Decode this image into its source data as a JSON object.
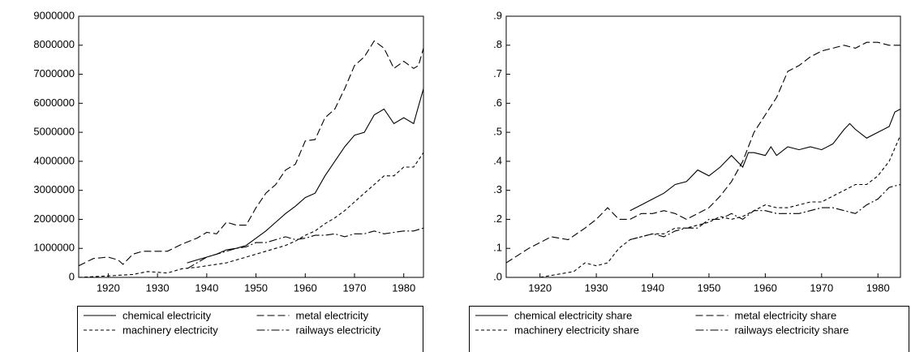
{
  "chart_data": [
    {
      "type": "line",
      "xlim": [
        1914,
        1984
      ],
      "xticks": [
        1920,
        1930,
        1940,
        1950,
        1960,
        1970,
        1980
      ],
      "ylim": [
        0,
        9000000
      ],
      "yticks": [
        0,
        1000000,
        2000000,
        3000000,
        4000000,
        5000000,
        6000000,
        7000000,
        8000000,
        9000000
      ],
      "grid": false,
      "series": [
        {
          "name": "chemical electricity",
          "color": "#000000",
          "dash": "none",
          "x": [
            1936,
            1938,
            1940,
            1942,
            1944,
            1946,
            1948,
            1950,
            1952,
            1954,
            1956,
            1958,
            1960,
            1962,
            1964,
            1966,
            1968,
            1970,
            1972,
            1974,
            1976,
            1978,
            1980,
            1982,
            1983,
            1984
          ],
          "values": [
            500000,
            600000,
            700000,
            800000,
            950000,
            1000000,
            1100000,
            1350000,
            1600000,
            1900000,
            2200000,
            2450000,
            2750000,
            2900000,
            3500000,
            4000000,
            4500000,
            4900000,
            5000000,
            5600000,
            5800000,
            5300000,
            5500000,
            5300000,
            5900000,
            6500000
          ]
        },
        {
          "name": "metal electricity",
          "color": "#000000",
          "dash": "9,4",
          "x": [
            1914,
            1917,
            1920,
            1922,
            1923,
            1925,
            1927,
            1930,
            1932,
            1935,
            1938,
            1940,
            1942,
            1944,
            1946,
            1948,
            1950,
            1952,
            1954,
            1956,
            1958,
            1960,
            1962,
            1964,
            1966,
            1968,
            1970,
            1972,
            1974,
            1976,
            1978,
            1980,
            1982,
            1983,
            1984
          ],
          "values": [
            400000,
            650000,
            700000,
            600000,
            450000,
            800000,
            900000,
            900000,
            900000,
            1150000,
            1350000,
            1550000,
            1500000,
            1900000,
            1800000,
            1800000,
            2400000,
            2900000,
            3200000,
            3700000,
            3900000,
            4700000,
            4750000,
            5500000,
            5800000,
            6500000,
            7300000,
            7600000,
            8150000,
            7900000,
            7200000,
            7450000,
            7200000,
            7300000,
            7900000
          ]
        },
        {
          "name": "machinery electricity",
          "color": "#000000",
          "dash": "4,3",
          "x": [
            1914,
            1920,
            1925,
            1928,
            1932,
            1935,
            1938,
            1940,
            1942,
            1944,
            1946,
            1948,
            1950,
            1952,
            1954,
            1956,
            1958,
            1960,
            1962,
            1964,
            1966,
            1968,
            1970,
            1972,
            1974,
            1976,
            1978,
            1980,
            1982,
            1984
          ],
          "values": [
            0,
            50000,
            100000,
            200000,
            150000,
            300000,
            350000,
            400000,
            450000,
            500000,
            600000,
            700000,
            800000,
            900000,
            1000000,
            1100000,
            1250000,
            1450000,
            1600000,
            1850000,
            2050000,
            2300000,
            2600000,
            2900000,
            3200000,
            3500000,
            3500000,
            3800000,
            3800000,
            4300000
          ]
        },
        {
          "name": "railways electricity",
          "color": "#000000",
          "dash": "10,3,2,3",
          "x": [
            1936,
            1938,
            1940,
            1942,
            1944,
            1946,
            1948,
            1950,
            1952,
            1954,
            1956,
            1958,
            1960,
            1962,
            1964,
            1966,
            1968,
            1970,
            1972,
            1974,
            1976,
            1978,
            1980,
            1982,
            1984
          ],
          "values": [
            300000,
            500000,
            700000,
            800000,
            900000,
            1000000,
            1050000,
            1200000,
            1200000,
            1300000,
            1400000,
            1300000,
            1350000,
            1450000,
            1450000,
            1500000,
            1400000,
            1500000,
            1500000,
            1600000,
            1500000,
            1550000,
            1600000,
            1600000,
            1700000
          ]
        }
      ]
    },
    {
      "type": "line",
      "xlim": [
        1914,
        1984
      ],
      "xticks": [
        1920,
        1930,
        1940,
        1950,
        1960,
        1970,
        1980
      ],
      "ylim": [
        0,
        0.9
      ],
      "yticks": [
        {
          "value": 0,
          "label": ".0"
        },
        {
          "value": 0.1,
          "label": ".1"
        },
        {
          "value": 0.2,
          "label": ".2"
        },
        {
          "value": 0.3,
          "label": ".3"
        },
        {
          "value": 0.4,
          "label": ".4"
        },
        {
          "value": 0.5,
          "label": ".5"
        },
        {
          "value": 0.6,
          "label": ".6"
        },
        {
          "value": 0.7,
          "label": ".7"
        },
        {
          "value": 0.8,
          "label": ".8"
        },
        {
          "value": 0.9,
          "label": ".9"
        }
      ],
      "grid": false,
      "series": [
        {
          "name": "chemical electricity share",
          "color": "#000000",
          "dash": "none",
          "x": [
            1936,
            1938,
            1940,
            1942,
            1944,
            1946,
            1948,
            1950,
            1952,
            1954,
            1956,
            1957,
            1958,
            1960,
            1961,
            1962,
            1964,
            1966,
            1968,
            1970,
            1972,
            1974,
            1975,
            1976,
            1978,
            1980,
            1982,
            1983,
            1984
          ],
          "values": [
            0.23,
            0.25,
            0.27,
            0.29,
            0.32,
            0.33,
            0.37,
            0.35,
            0.38,
            0.42,
            0.38,
            0.43,
            0.43,
            0.42,
            0.45,
            0.42,
            0.45,
            0.44,
            0.45,
            0.44,
            0.46,
            0.51,
            0.53,
            0.51,
            0.48,
            0.5,
            0.52,
            0.57,
            0.58
          ]
        },
        {
          "name": "metal electricity share",
          "color": "#000000",
          "dash": "9,4",
          "x": [
            1914,
            1918,
            1920,
            1922,
            1925,
            1928,
            1930,
            1932,
            1934,
            1936,
            1938,
            1940,
            1942,
            1944,
            1946,
            1948,
            1950,
            1952,
            1954,
            1956,
            1958,
            1960,
            1962,
            1964,
            1966,
            1968,
            1970,
            1972,
            1974,
            1976,
            1978,
            1980,
            1982,
            1984
          ],
          "values": [
            0.05,
            0.1,
            0.12,
            0.14,
            0.13,
            0.17,
            0.2,
            0.24,
            0.2,
            0.2,
            0.22,
            0.22,
            0.23,
            0.22,
            0.2,
            0.22,
            0.24,
            0.28,
            0.33,
            0.4,
            0.5,
            0.56,
            0.62,
            0.71,
            0.73,
            0.76,
            0.78,
            0.79,
            0.8,
            0.79,
            0.81,
            0.81,
            0.8,
            0.8
          ]
        },
        {
          "name": "machinery electricity share",
          "color": "#000000",
          "dash": "4,3",
          "x": [
            1914,
            1920,
            1923,
            1926,
            1928,
            1930,
            1932,
            1934,
            1936,
            1938,
            1940,
            1942,
            1944,
            1946,
            1948,
            1950,
            1952,
            1954,
            1956,
            1958,
            1960,
            1962,
            1964,
            1966,
            1968,
            1970,
            1972,
            1974,
            1976,
            1978,
            1980,
            1982,
            1984
          ],
          "values": [
            0,
            0,
            0.01,
            0.02,
            0.05,
            0.04,
            0.05,
            0.1,
            0.13,
            0.14,
            0.15,
            0.15,
            0.17,
            0.17,
            0.18,
            0.19,
            0.21,
            0.2,
            0.21,
            0.23,
            0.25,
            0.24,
            0.24,
            0.25,
            0.26,
            0.26,
            0.28,
            0.3,
            0.32,
            0.32,
            0.35,
            0.4,
            0.49
          ]
        },
        {
          "name": "railways electricity share",
          "color": "#000000",
          "dash": "10,3,2,3",
          "x": [
            1936,
            1938,
            1940,
            1942,
            1944,
            1946,
            1948,
            1950,
            1952,
            1954,
            1956,
            1958,
            1960,
            1962,
            1964,
            1966,
            1968,
            1970,
            1972,
            1974,
            1976,
            1978,
            1980,
            1982,
            1984
          ],
          "values": [
            0.13,
            0.14,
            0.15,
            0.14,
            0.16,
            0.17,
            0.17,
            0.2,
            0.2,
            0.22,
            0.2,
            0.23,
            0.23,
            0.22,
            0.22,
            0.22,
            0.23,
            0.24,
            0.24,
            0.23,
            0.22,
            0.25,
            0.27,
            0.31,
            0.32
          ]
        }
      ]
    }
  ]
}
